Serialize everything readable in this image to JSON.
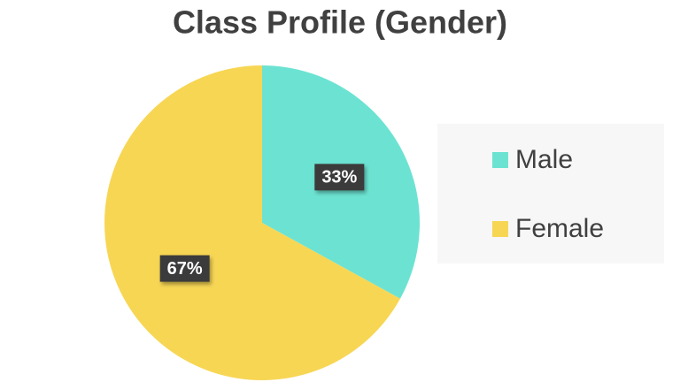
{
  "chart_data": {
    "type": "pie",
    "title": "Class Profile (Gender)",
    "categories": [
      "Male",
      "Female"
    ],
    "values": [
      33,
      67
    ],
    "value_labels": [
      "33%",
      "67%"
    ],
    "colors": [
      "#6ce3d2",
      "#f7d654"
    ],
    "legend": "right"
  }
}
